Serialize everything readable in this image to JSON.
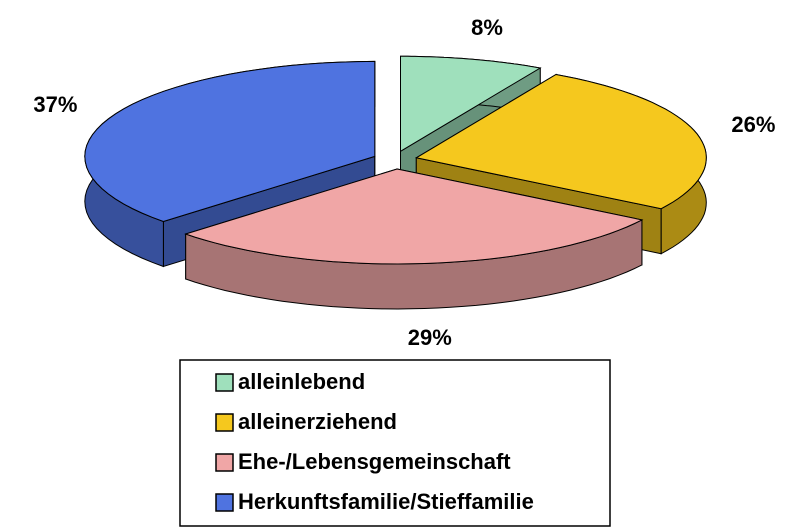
{
  "chart_data": {
    "type": "pie",
    "categories": [
      "alleinlebend",
      "alleinerziehend",
      "Ehe-/Lebensgemeinschaft",
      "Herkunftsfamilie/Stieffamilie"
    ],
    "values": [
      8,
      26,
      29,
      37
    ],
    "value_labels": [
      "8%",
      "26%",
      "29%",
      "37%"
    ],
    "colors": [
      "#9fe0bc",
      "#f5c81e",
      "#f0a6a6",
      "#4f73e0"
    ],
    "legend": "bottom"
  }
}
